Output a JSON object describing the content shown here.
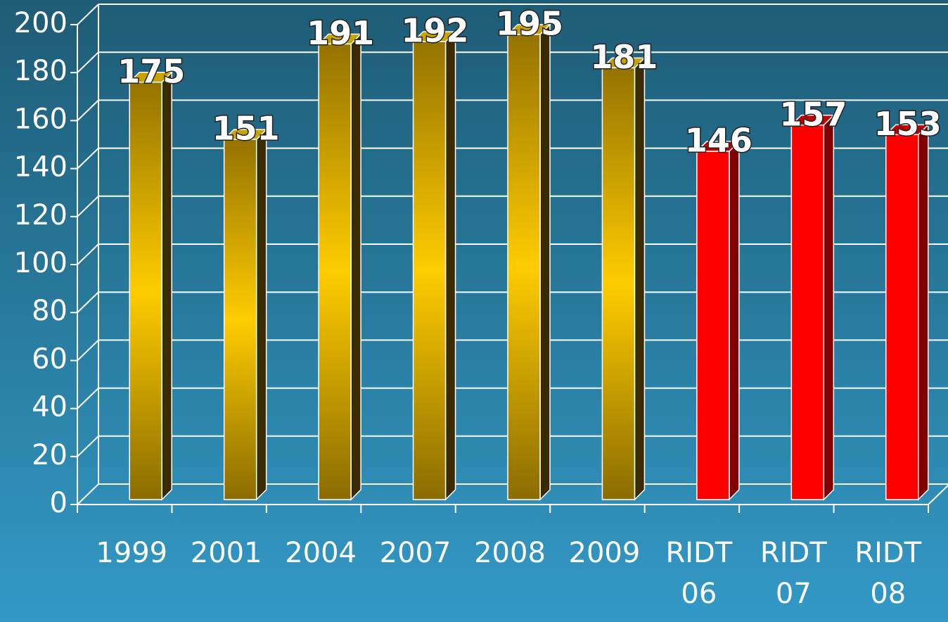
{
  "chart_data": {
    "type": "bar3d",
    "categories": [
      "1999",
      "2001",
      "2004",
      "2007",
      "2008",
      "2009",
      "RIDT 06",
      "RIDT 07",
      "RIDT 08"
    ],
    "values": [
      175,
      151,
      191,
      192,
      195,
      181,
      146,
      157,
      153
    ],
    "colors": [
      "gold",
      "gold",
      "gold",
      "gold",
      "gold",
      "gold",
      "red",
      "red",
      "red"
    ],
    "ylim": [
      0,
      200
    ],
    "yticks": [
      0,
      20,
      40,
      60,
      80,
      100,
      120,
      140,
      160,
      180,
      200
    ],
    "grid": true
  }
}
